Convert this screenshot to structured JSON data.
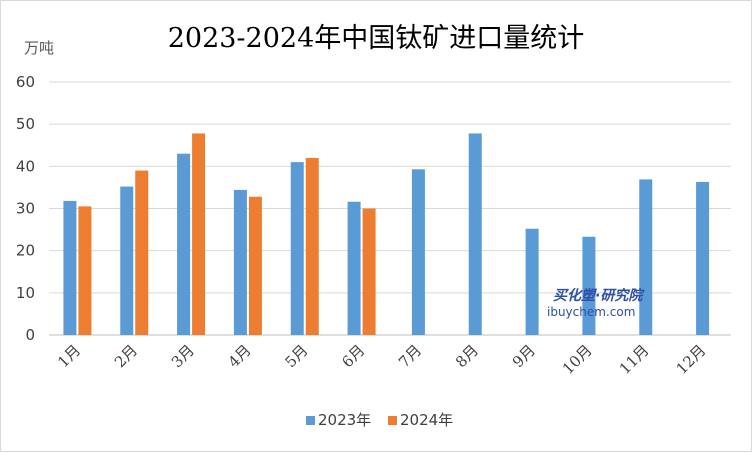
{
  "chart_data": {
    "type": "bar",
    "title": "2023-2024年中国钛矿进口量统计",
    "ylabel": "万吨",
    "ylim": [
      0,
      60
    ],
    "yticks": [
      0,
      10,
      20,
      30,
      40,
      50,
      60
    ],
    "grid": true,
    "legend_position": "bottom",
    "categories": [
      "1月",
      "2月",
      "3月",
      "4月",
      "5月",
      "6月",
      "7月",
      "8月",
      "9月",
      "10月",
      "11月",
      "12月"
    ],
    "series": [
      {
        "name": "2023年",
        "color": "#5b9bd5",
        "values": [
          31.8,
          35.2,
          43.0,
          34.4,
          41.0,
          31.6,
          39.3,
          47.8,
          25.2,
          23.3,
          36.9,
          36.3
        ]
      },
      {
        "name": "2024年",
        "color": "#ed7d31",
        "values": [
          30.5,
          39.0,
          47.8,
          32.8,
          42.0,
          30.0,
          null,
          null,
          null,
          null,
          null,
          null
        ]
      }
    ]
  },
  "watermark": {
    "brand": "买化塑·研究院",
    "site": "ibuychem.com"
  }
}
